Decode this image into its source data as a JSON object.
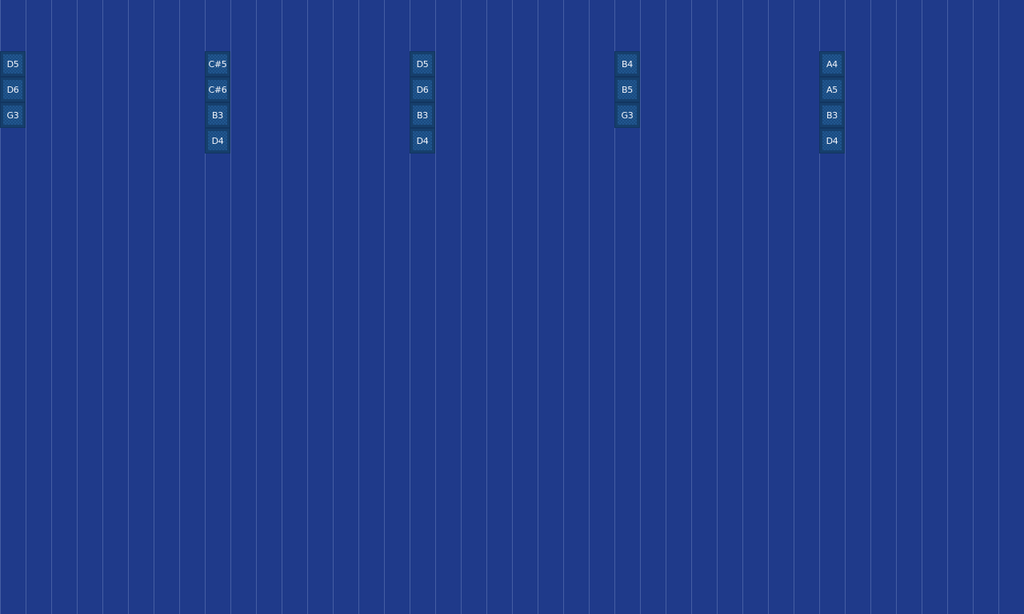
{
  "colors": {
    "background": "#1f3a8a",
    "note_tile": "#1c4f87"
  },
  "columns": [
    {
      "notes": [
        "D5",
        "D6",
        "G3"
      ]
    },
    {
      "notes": [
        "C#5",
        "C#6",
        "B3",
        "D4"
      ]
    },
    {
      "notes": [
        "D5",
        "D6",
        "B3",
        "D4"
      ]
    },
    {
      "notes": [
        "B4",
        "B5",
        "G3"
      ]
    },
    {
      "notes": [
        "A4",
        "A5",
        "B3",
        "D4"
      ]
    }
  ]
}
